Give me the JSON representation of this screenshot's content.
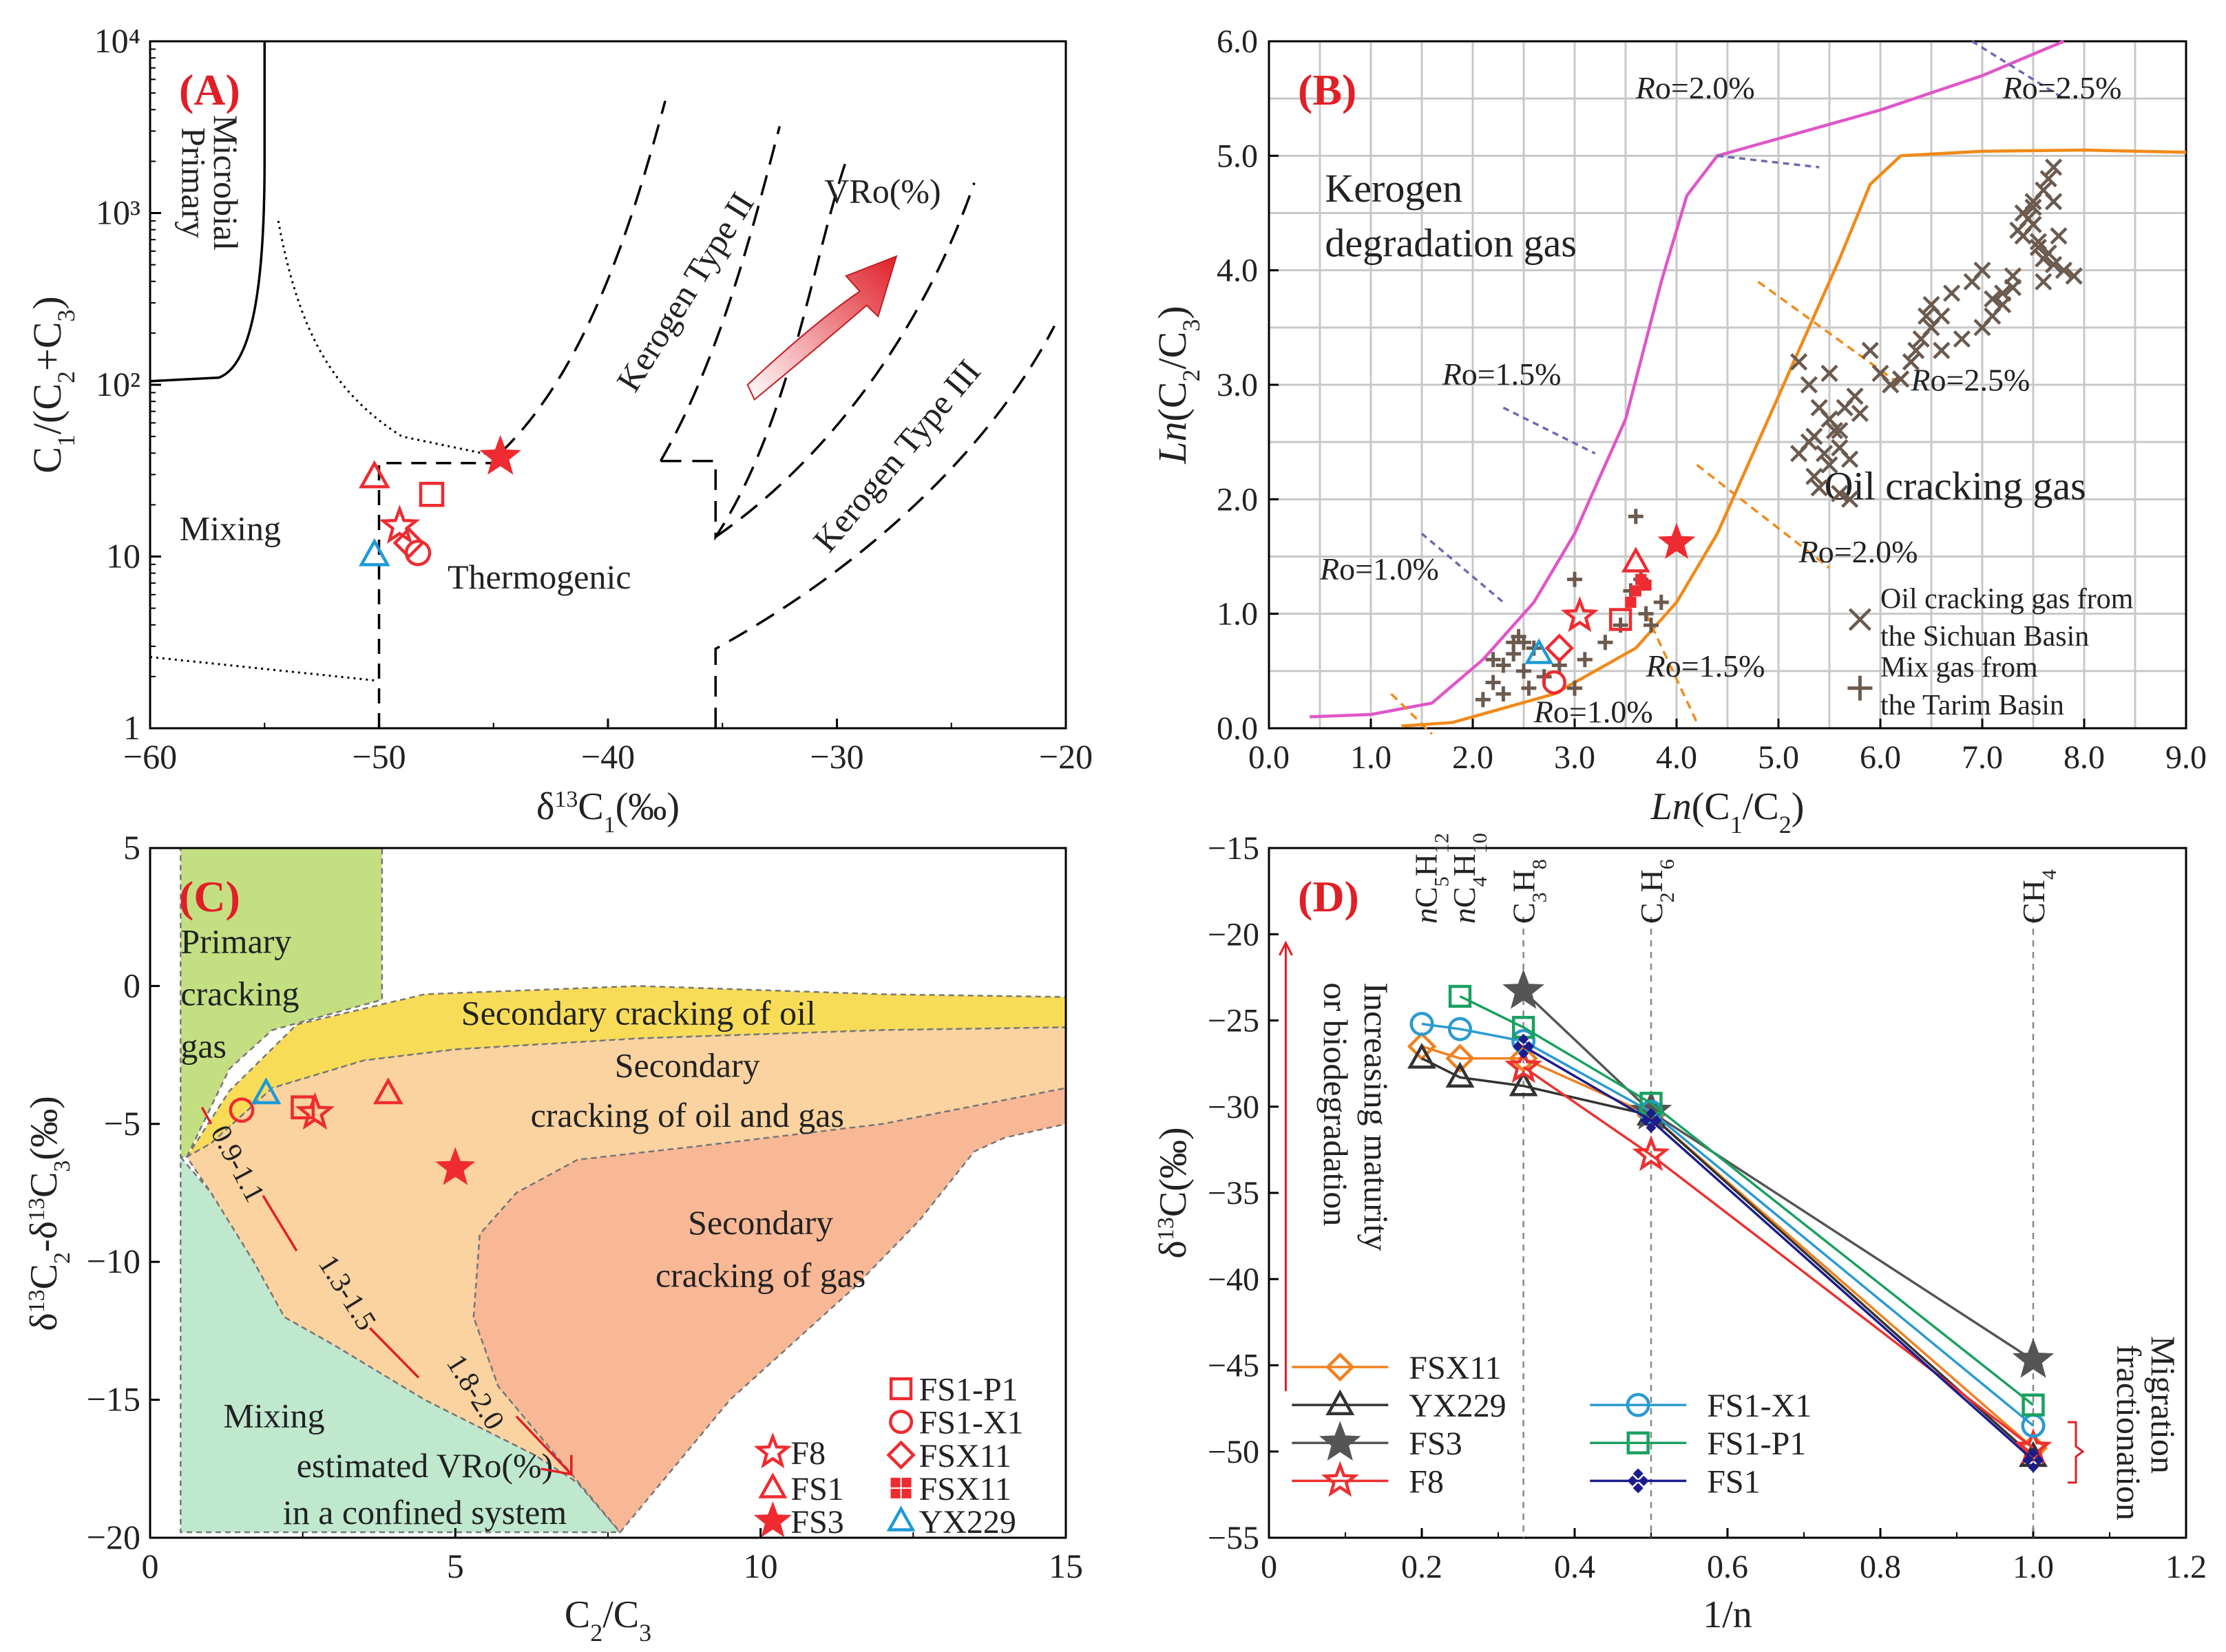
{
  "chart_data": [
    {
      "id": "A",
      "type": "scatter",
      "panel_label": "(A)",
      "xlabel": "δ13C1(‰)",
      "ylabel": "C1/(C2+C3)",
      "xlim": [
        -60,
        -20
      ],
      "ylim": [
        1,
        10000
      ],
      "yscale": "log",
      "xticks": [
        "−60",
        "−50",
        "−40",
        "−30",
        "−20"
      ],
      "yticks": [
        "1",
        "10",
        "10²",
        "10³",
        "10⁴"
      ],
      "regions": [
        "Primary Microbial",
        "Mixing",
        "Thermogenic",
        "Kerogen Type II",
        "Kerogen Type III"
      ],
      "annotation": "VRo(%)",
      "points": [
        {
          "sample": "FS1",
          "marker": "triangle",
          "x": -50.2,
          "y": 29
        },
        {
          "sample": "FS1-P1",
          "marker": "square",
          "x": -47.7,
          "y": 23
        },
        {
          "sample": "F8",
          "marker": "star-open",
          "x": -49.1,
          "y": 15
        },
        {
          "sample": "FSX11",
          "marker": "diamond",
          "x": -48.7,
          "y": 12
        },
        {
          "sample": "FS1-X1",
          "marker": "circle",
          "x": -48.3,
          "y": 10.5
        },
        {
          "sample": "YX229",
          "marker": "triangle-blue",
          "x": -50.2,
          "y": 10.2
        },
        {
          "sample": "FS3",
          "marker": "star-filled",
          "x": -44.7,
          "y": 38
        }
      ]
    },
    {
      "id": "B",
      "type": "scatter",
      "panel_label": "(B)",
      "xlabel": "Ln(C1/C2)",
      "ylabel": "Ln(C2/C3)",
      "xlim": [
        0,
        9
      ],
      "ylim": [
        0,
        6
      ],
      "xticks": [
        "0.0",
        "1.0",
        "2.0",
        "3.0",
        "4.0",
        "5.0",
        "6.0",
        "7.0",
        "8.0",
        "9.0"
      ],
      "yticks": [
        "0.0",
        "1.0",
        "2.0",
        "3.0",
        "4.0",
        "5.0",
        "6.0"
      ],
      "regions": [
        "Kerogen degradation gas",
        "Oil cracking gas"
      ],
      "ro_labels_kerogen": [
        "Ro=1.0%",
        "Ro=1.5%",
        "Ro=2.0%",
        "Ro=2.5%"
      ],
      "ro_labels_oil": [
        "Ro=1.0%",
        "Ro=1.5%",
        "Ro=2.0%",
        "Ro=2.5%"
      ],
      "legend": [
        "Oil cracking gas from the Sichuan Basin",
        "Mix gas from the Tarim Basin"
      ],
      "kerogen_curve": {
        "x": [
          0.4,
          1.0,
          1.6,
          2.1,
          2.6,
          3.0,
          3.5,
          3.85,
          4.1,
          4.4,
          5.0,
          6.0,
          7.0,
          7.8
        ],
        "y": [
          0.1,
          0.12,
          0.22,
          0.6,
          1.1,
          1.7,
          2.7,
          3.9,
          4.65,
          5.0,
          5.15,
          5.4,
          5.7,
          6.0
        ]
      },
      "oil_curve": {
        "x": [
          1.3,
          1.8,
          2.8,
          3.6,
          4.0,
          4.4,
          4.8,
          5.2,
          5.6,
          5.9,
          6.2,
          7.0,
          8.0,
          9.0
        ],
        "y": [
          0.02,
          0.05,
          0.3,
          0.7,
          1.1,
          1.7,
          2.5,
          3.3,
          4.1,
          4.75,
          5.0,
          5.04,
          5.05,
          5.03
        ]
      },
      "series": [
        {
          "name": "Oil cracking gas from the Sichuan Basin",
          "marker": "x",
          "x": [
            5.2,
            5.3,
            5.4,
            5.5,
            5.6,
            5.3,
            5.45,
            5.5,
            5.2,
            5.35,
            5.4,
            5.6,
            5.7,
            5.55,
            5.65,
            5.8,
            5.75,
            5.5,
            5.35,
            5.6,
            5.7,
            5.9,
            6.0,
            6.1,
            6.2,
            6.3,
            6.4,
            6.45,
            6.5,
            6.35,
            6.5,
            6.6,
            6.7,
            6.9,
            7.0,
            7.1,
            7.2,
            7.3,
            7.4,
            7.5,
            7.6,
            7.65,
            7.7,
            7.5,
            7.4,
            7.55,
            7.6,
            7.7,
            7.8,
            7.6,
            7.45,
            7.35,
            7.7,
            7.75,
            7.9,
            7.2,
            7.0,
            6.8,
            6.6,
            6.2,
            7.5,
            7.55,
            7.65,
            7.3,
            7.1
          ],
          "y": [
            3.2,
            3.0,
            2.8,
            2.7,
            2.6,
            2.5,
            2.4,
            2.3,
            2.4,
            2.2,
            2.1,
            2.05,
            2.0,
            2.6,
            2.8,
            2.75,
            2.9,
            3.1,
            2.55,
            2.45,
            2.35,
            3.3,
            3.1,
            3.0,
            3.05,
            3.2,
            3.4,
            3.6,
            3.5,
            3.3,
            3.7,
            3.6,
            3.8,
            3.9,
            4.0,
            3.75,
            3.8,
            3.95,
            4.5,
            4.6,
            4.7,
            4.8,
            4.9,
            4.4,
            4.3,
            4.2,
            4.1,
            4.05,
            4.0,
            3.9,
            4.45,
            4.35,
            4.6,
            4.3,
            3.95,
            3.7,
            3.5,
            3.4,
            3.3,
            3.05,
            4.55,
            4.25,
            4.15,
            3.85,
            3.6
          ]
        },
        {
          "name": "Mix gas from the Tarim Basin",
          "marker": "plus",
          "x": [
            2.1,
            2.2,
            2.3,
            2.4,
            2.45,
            2.5,
            2.55,
            2.6,
            2.3,
            2.2,
            2.5,
            2.7,
            2.85,
            3.0,
            3.1,
            3.3,
            3.45,
            3.55,
            3.6,
            3.7,
            3.75,
            3.85,
            3.65,
            3.0,
            2.4
          ],
          "y": [
            0.25,
            0.4,
            0.55,
            0.65,
            0.8,
            0.5,
            0.35,
            0.7,
            0.3,
            0.6,
            0.75,
            0.45,
            0.55,
            1.3,
            0.6,
            0.75,
            0.9,
            1.2,
            1.85,
            1.0,
            0.9,
            1.1,
            1.3,
            0.35,
            0.75
          ]
        },
        {
          "name": "F8",
          "marker": "star-open",
          "x": [
            3.05
          ],
          "y": [
            0.98
          ]
        },
        {
          "name": "FS1",
          "marker": "triangle",
          "x": [
            3.6
          ],
          "y": [
            1.45
          ]
        },
        {
          "name": "FS1-P1",
          "marker": "square",
          "x": [
            3.45
          ],
          "y": [
            0.95
          ]
        },
        {
          "name": "FSX11",
          "marker": "diamond",
          "x": [
            2.85
          ],
          "y": [
            0.7
          ]
        },
        {
          "name": "FS1-X1",
          "marker": "circle",
          "x": [
            2.8
          ],
          "y": [
            0.4
          ]
        },
        {
          "name": "YX229",
          "marker": "triangle-blue",
          "x": [
            2.65
          ],
          "y": [
            0.65
          ]
        },
        {
          "name": "FSX11 (filled)",
          "marker": "square-filled",
          "x": [
            3.55,
            3.6,
            3.65,
            3.7
          ],
          "y": [
            1.1,
            1.2,
            1.3,
            1.25
          ]
        },
        {
          "name": "FS3",
          "marker": "star-filled",
          "x": [
            4.0
          ],
          "y": [
            1.62
          ]
        }
      ]
    },
    {
      "id": "C",
      "type": "scatter",
      "panel_label": "(C)",
      "xlabel": "C2/C3",
      "ylabel": "δ13C2-δ13C3(‰)",
      "xlim": [
        0,
        15
      ],
      "ylim": [
        -20,
        5
      ],
      "xticks": [
        "0",
        "5",
        "10",
        "15"
      ],
      "yticks": [
        "5",
        "0",
        "−5",
        "−10",
        "−15",
        "−20"
      ],
      "regions": [
        "Primary cracking gas",
        "Secondary cracking of oil",
        "Secondary cracking of oil and gas",
        "Secondary cracking of gas",
        "Mixing",
        "estimated VRo(%) in a confined system"
      ],
      "vro_labels": [
        "0.9-1.1",
        "1.3-1.5",
        "1.8-2.0"
      ],
      "legend": [
        "F8",
        "FS1",
        "FS3",
        "FS1-P1",
        "FS1-X1",
        "FSX11",
        "FSX11",
        "YX229"
      ],
      "points": [
        {
          "sample": "FS1-X1",
          "marker": "circle",
          "x": 1.5,
          "y": -4.5
        },
        {
          "sample": "YX229",
          "marker": "triangle-blue",
          "x": 1.9,
          "y": -3.9
        },
        {
          "sample": "FS1-P1",
          "marker": "square",
          "x": 2.5,
          "y": -4.4
        },
        {
          "sample": "F8",
          "marker": "star-open",
          "x": 2.7,
          "y": -4.6
        },
        {
          "sample": "FS1",
          "marker": "triangle",
          "x": 3.9,
          "y": -3.9
        },
        {
          "sample": "FS3",
          "marker": "star-filled",
          "x": 5.0,
          "y": -6.6
        }
      ]
    },
    {
      "id": "D",
      "type": "line",
      "panel_label": "(D)",
      "xlabel": "1/n",
      "ylabel": "δ13C(‰)",
      "xlim": [
        0,
        1.2
      ],
      "ylim": [
        -55,
        -15
      ],
      "xticks": [
        "0",
        "0.2",
        "0.4",
        "0.6",
        "0.8",
        "1.0",
        "1.2"
      ],
      "yticks": [
        "−15",
        "−20",
        "−25",
        "−30",
        "−35",
        "−40",
        "−45",
        "−50",
        "−55"
      ],
      "compounds": [
        "nC5H12",
        "nC4H10",
        "C3H8",
        "C2H6",
        "CH4"
      ],
      "annotations": [
        "Increasing maturity or biodegradation",
        "Migration fractionation"
      ],
      "series": [
        {
          "name": "FSX11",
          "color": "#f08020",
          "marker": "diamond",
          "x": [
            0.2,
            0.25,
            0.333,
            0.5,
            1.0
          ],
          "y": [
            -26.5,
            -27.2,
            -27.2,
            -30.5,
            -49.8
          ]
        },
        {
          "name": "YX229",
          "color": "#333333",
          "marker": "triangle",
          "x": [
            0.2,
            0.25,
            0.333,
            0.5,
            1.0
          ],
          "y": [
            -27.2,
            -28.3,
            -28.8,
            -30.5,
            -50.3
          ]
        },
        {
          "name": "FS3",
          "color": "#555555",
          "marker": "star-filled",
          "x": [
            0.333,
            0.5,
            1.0
          ],
          "y": [
            -23.3,
            -30.3,
            -44.7
          ]
        },
        {
          "name": "F8",
          "color": "#ee3030",
          "marker": "star-open",
          "x": [
            0.333,
            0.5,
            1.0
          ],
          "y": [
            -27.7,
            -32.8,
            -49.8
          ]
        },
        {
          "name": "FS1-X1",
          "color": "#2a9bd0",
          "marker": "circle",
          "x": [
            0.2,
            0.25,
            0.333,
            0.5,
            1.0
          ],
          "y": [
            -25.2,
            -25.5,
            -26.2,
            -30.3,
            -48.5
          ]
        },
        {
          "name": "FS1-P1",
          "color": "#1aa060",
          "marker": "square",
          "x": [
            0.25,
            0.333,
            0.5,
            1.0
          ],
          "y": [
            -23.6,
            -25.4,
            -29.8,
            -47.3
          ]
        },
        {
          "name": "FS1",
          "color": "#1c1c8c",
          "marker": "diamond-cluster",
          "x": [
            0.333,
            0.5,
            1.0
          ],
          "y": [
            -26.5,
            -30.8,
            -50.5
          ]
        }
      ]
    }
  ]
}
